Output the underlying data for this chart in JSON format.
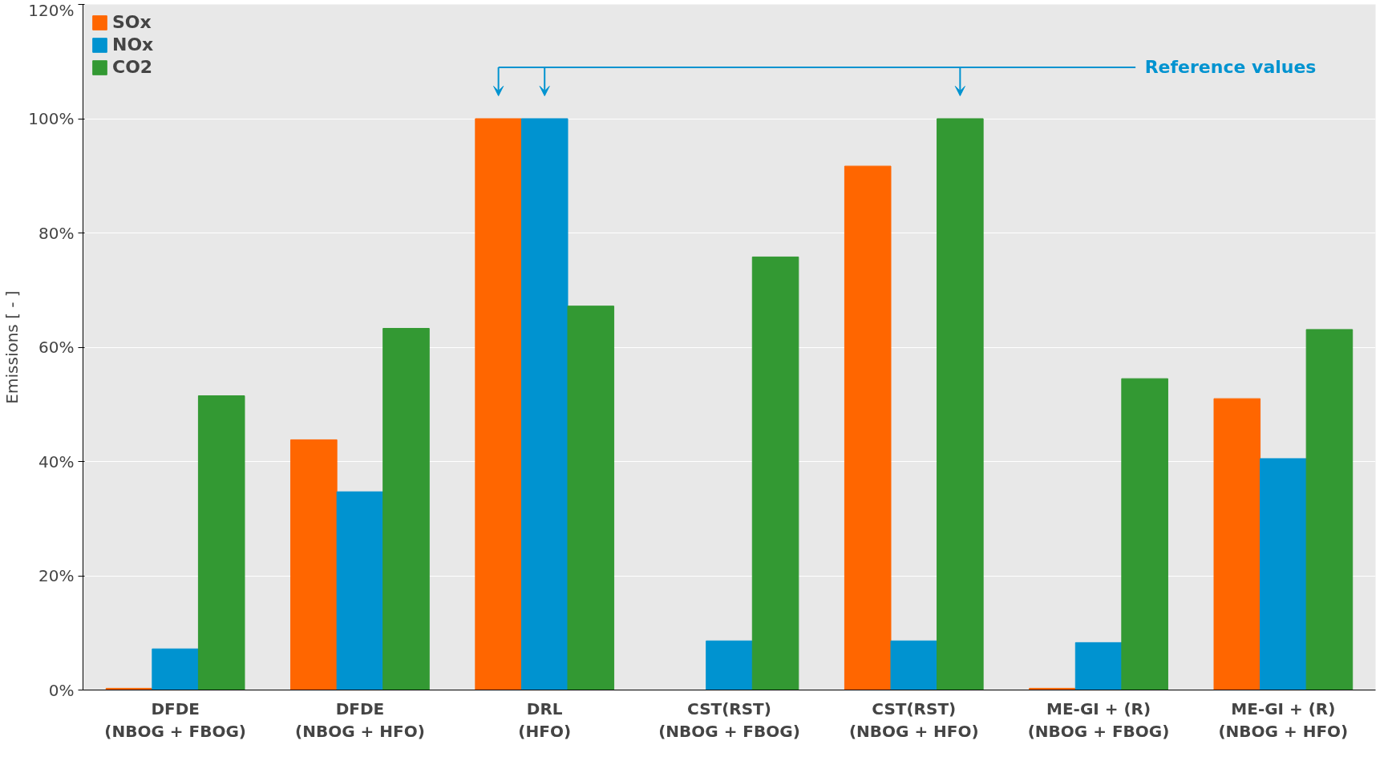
{
  "chart_data": {
    "type": "bar",
    "ylabel": "Emissions [ - ]",
    "categories": [
      "DFDE\n(NBOG + FBOG)",
      "DFDE\n(NBOG + HFO)",
      "DRL\n(HFO)",
      "CST(RST)\n(NBOG + FBOG)",
      "CST(RST)\n(NBOG + HFO)",
      "ME-GI + (R)\n(NBOG + FBOG)",
      "ME-GI + (R)\n(NBOG + HFO)"
    ],
    "series": [
      {
        "name": "SOx",
        "color": "#ff6600",
        "values": [
          0.3,
          43.8,
          100,
          0,
          91.7,
          0.3,
          51.0
        ]
      },
      {
        "name": "NOx",
        "color": "#0093d0",
        "values": [
          7.2,
          34.7,
          100,
          8.6,
          8.6,
          8.3,
          40.5
        ]
      },
      {
        "name": "CO2",
        "color": "#339933",
        "values": [
          51.5,
          63.3,
          67.2,
          75.8,
          100,
          54.5,
          63.1
        ]
      }
    ],
    "ylim": [
      0,
      120
    ],
    "yticks": [
      {
        "value": 0,
        "label": "0%"
      },
      {
        "value": 20,
        "label": "20%"
      },
      {
        "value": 40,
        "label": "40%"
      },
      {
        "value": 60,
        "label": "60%"
      },
      {
        "value": 80,
        "label": "80%"
      },
      {
        "value": 100,
        "label": "100%"
      },
      {
        "value": 120,
        "label": "120%"
      }
    ],
    "grid": "y",
    "legend": "top left",
    "annotations": [
      "Reference values"
    ]
  }
}
